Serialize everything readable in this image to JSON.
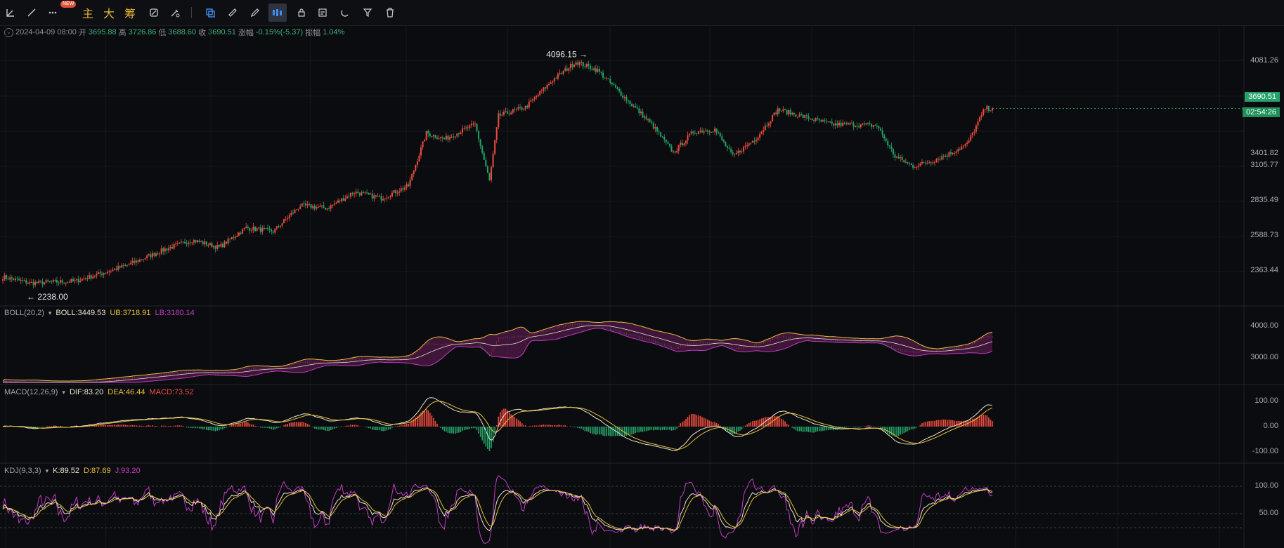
{
  "toolbar": {
    "badge": "NEW",
    "labels": [
      "主",
      "大",
      "筹"
    ]
  },
  "ohlc": {
    "datetime": "2024-04-09 08:00",
    "open_label": "开",
    "open": "3695.88",
    "high_label": "高",
    "high": "3726.86",
    "low_label": "低",
    "low": "3688.60",
    "close_label": "收",
    "close": "3690.51",
    "change_label": "涨幅",
    "change": "-0.15%(-5.37)",
    "amp_label": "振幅",
    "amp": "1.04%"
  },
  "price_axis": [
    "4081.26",
    "3401.82",
    "3105.77",
    "2835.49",
    "2588.73",
    "2363.44"
  ],
  "current_price": "3690.51",
  "countdown": "02:54:26",
  "markers": {
    "high": "4096.15",
    "low": "← 2238.00"
  },
  "boll": {
    "name": "BOLL(20,2)",
    "mid": "BOLL:3449.53",
    "ub": "UB:3718.91",
    "lb": "LB:3180.14",
    "axis": [
      "4000.00",
      "3000.00"
    ]
  },
  "macd": {
    "name": "MACD(12,26,9)",
    "dif": "DIF:83.20",
    "dea": "DEA:46.44",
    "macd": "MACD:73.52",
    "axis": [
      "100.00",
      "0.00",
      "-100.00"
    ]
  },
  "kdj": {
    "name": "KDJ(9,3,3)",
    "k": "K:89.52",
    "d": "D:87.69",
    "j": "J:93.20",
    "axis": [
      "100.00",
      "50.00"
    ]
  },
  "colors": {
    "up": "#ef4b3f",
    "down": "#26a269",
    "boll_mid": "#e9e3d3",
    "boll_ub": "#e8c13a",
    "boll_lb": "#c23cc0",
    "band": "#6b1d5e",
    "dif": "#e9e3d3",
    "dea": "#e8c13a",
    "k": "#e9e3d3",
    "d": "#e8c13a",
    "j": "#c23cc0"
  },
  "chart_data": {
    "type": "candlestick",
    "anchors": [
      [
        0,
        2320
      ],
      [
        15,
        2270
      ],
      [
        40,
        2285
      ],
      [
        55,
        2350
      ],
      [
        70,
        2420
      ],
      [
        90,
        2545
      ],
      [
        105,
        2620
      ],
      [
        120,
        2560
      ],
      [
        135,
        2720
      ],
      [
        150,
        2690
      ],
      [
        165,
        2900
      ],
      [
        180,
        2880
      ],
      [
        195,
        3010
      ],
      [
        210,
        2960
      ],
      [
        225,
        3060
      ],
      [
        235,
        3490
      ],
      [
        245,
        3440
      ],
      [
        262,
        3560
      ],
      [
        270,
        3100
      ],
      [
        275,
        3630
      ],
      [
        290,
        3700
      ],
      [
        305,
        3920
      ],
      [
        318,
        4070
      ],
      [
        330,
        4000
      ],
      [
        345,
        3780
      ],
      [
        360,
        3560
      ],
      [
        372,
        3330
      ],
      [
        383,
        3500
      ],
      [
        395,
        3520
      ],
      [
        405,
        3300
      ],
      [
        418,
        3450
      ],
      [
        430,
        3680
      ],
      [
        445,
        3620
      ],
      [
        460,
        3560
      ],
      [
        470,
        3560
      ],
      [
        485,
        3550
      ],
      [
        495,
        3300
      ],
      [
        505,
        3220
      ],
      [
        515,
        3260
      ],
      [
        525,
        3320
      ],
      [
        535,
        3400
      ],
      [
        545,
        3690
      ]
    ],
    "high_point": 4096.15,
    "low_point": 2238.0,
    "last_close": 3690.51
  }
}
